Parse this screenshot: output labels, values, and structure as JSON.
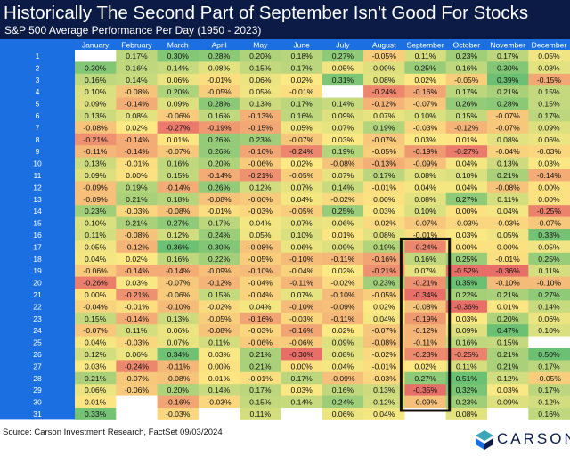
{
  "header": {
    "title": "Historically The Second Part of September Isn't Good For Stocks",
    "subtitle": "S&P 500 Average Performance Per Day (1950 - 2023)"
  },
  "chart_data": {
    "type": "table",
    "title": "Historically The Second Part of September Isn't Good For Stocks",
    "subtitle": "S&P 500 Average Performance Per Day (1950 - 2023)",
    "columns": [
      "January",
      "February",
      "March",
      "April",
      "May",
      "June",
      "July",
      "August",
      "September",
      "October",
      "November",
      "December"
    ],
    "rows": [
      "1",
      "2",
      "3",
      "4",
      "5",
      "6",
      "7",
      "8",
      "9",
      "10",
      "11",
      "12",
      "13",
      "14",
      "15",
      "16",
      "17",
      "18",
      "19",
      "20",
      "21",
      "22",
      "23",
      "24",
      "25",
      "26",
      "27",
      "28",
      "29",
      "30",
      "31"
    ],
    "values": [
      [
        "",
        "0.17%",
        "0.30%",
        "0.28%",
        "0.20%",
        "0.18%",
        "0.27%",
        "-0.05%",
        "0.11%",
        "0.23%",
        "0.17%",
        "0.05%"
      ],
      [
        "0.30%",
        "0.16%",
        "0.14%",
        "0.08%",
        "0.15%",
        "0.17%",
        "0.05%",
        "0.09%",
        "0.25%",
        "0.16%",
        "0.30%",
        "0.08%"
      ],
      [
        "0.16%",
        "0.14%",
        "0.06%",
        "-0.01%",
        "0.06%",
        "0.02%",
        "0.31%",
        "0.08%",
        "0.02%",
        "-0.05%",
        "0.39%",
        "-0.15%"
      ],
      [
        "0.10%",
        "-0.08%",
        "0.20%",
        "-0.05%",
        "0.05%",
        "-0.01%",
        "",
        "-0.24%",
        "-0.16%",
        "0.17%",
        "0.21%",
        "0.15%"
      ],
      [
        "0.09%",
        "-0.14%",
        "0.09%",
        "0.28%",
        "0.13%",
        "0.17%",
        "0.14%",
        "-0.12%",
        "-0.07%",
        "0.26%",
        "0.28%",
        "0.15%"
      ],
      [
        "0.13%",
        "0.08%",
        "-0.06%",
        "0.16%",
        "-0.13%",
        "0.16%",
        "0.09%",
        "0.07%",
        "0.10%",
        "0.15%",
        "-0.07%",
        "0.17%"
      ],
      [
        "-0.08%",
        "0.02%",
        "-0.27%",
        "-0.19%",
        "-0.15%",
        "0.05%",
        "0.07%",
        "0.19%",
        "-0.03%",
        "-0.12%",
        "-0.07%",
        "0.09%"
      ],
      [
        "-0.21%",
        "-0.14%",
        "0.01%",
        "0.26%",
        "0.23%",
        "-0.07%",
        "0.03%",
        "-0.07%",
        "0.03%",
        "0.01%",
        "0.08%",
        "0.06%"
      ],
      [
        "-0.11%",
        "-0.14%",
        "-0.07%",
        "0.26%",
        "-0.16%",
        "-0.24%",
        "0.19%",
        "-0.05%",
        "-0.19%",
        "-0.27%",
        "-0.04%",
        "-0.03%"
      ],
      [
        "0.13%",
        "-0.01%",
        "0.16%",
        "0.20%",
        "-0.06%",
        "0.02%",
        "-0.08%",
        "-0.13%",
        "-0.09%",
        "0.04%",
        "0.13%",
        "0.03%"
      ],
      [
        "0.09%",
        "0.00%",
        "0.15%",
        "-0.14%",
        "-0.21%",
        "-0.05%",
        "0.07%",
        "0.17%",
        "0.08%",
        "0.10%",
        "0.21%",
        "-0.14%"
      ],
      [
        "-0.09%",
        "0.19%",
        "-0.14%",
        "0.26%",
        "0.12%",
        "0.07%",
        "0.14%",
        "-0.01%",
        "0.04%",
        "0.04%",
        "-0.08%",
        "0.00%"
      ],
      [
        "-0.09%",
        "0.21%",
        "0.18%",
        "-0.08%",
        "-0.06%",
        "0.04%",
        "-0.02%",
        "0.00%",
        "0.08%",
        "0.27%",
        "0.11%",
        "0.00%"
      ],
      [
        "0.23%",
        "-0.03%",
        "-0.08%",
        "-0.01%",
        "-0.03%",
        "-0.05%",
        "0.25%",
        "0.03%",
        "0.10%",
        "0.00%",
        "0.04%",
        "-0.25%"
      ],
      [
        "0.10%",
        "0.21%",
        "0.27%",
        "0.17%",
        "0.04%",
        "0.07%",
        "0.06%",
        "-0.02%",
        "-0.07%",
        "-0.03%",
        "-0.03%",
        "-0.07%"
      ],
      [
        "0.11%",
        "-0.08%",
        "0.12%",
        "0.24%",
        "0.05%",
        "0.10%",
        "0.01%",
        "0.08%",
        "-0.01%",
        "0.03%",
        "0.05%",
        "0.33%"
      ],
      [
        "0.05%",
        "-0.12%",
        "0.36%",
        "0.30%",
        "-0.08%",
        "0.06%",
        "0.09%",
        "0.19%",
        "-0.24%",
        "0.00%",
        "0.00%",
        "0.05%"
      ],
      [
        "0.04%",
        "0.02%",
        "0.16%",
        "0.22%",
        "-0.05%",
        "-0.10%",
        "-0.11%",
        "-0.16%",
        "0.16%",
        "0.25%",
        "-0.01%",
        "0.25%"
      ],
      [
        "-0.06%",
        "-0.14%",
        "-0.14%",
        "-0.09%",
        "-0.10%",
        "-0.04%",
        "0.02%",
        "-0.21%",
        "0.07%",
        "-0.52%",
        "-0.36%",
        "0.11%"
      ],
      [
        "-0.26%",
        "0.03%",
        "-0.07%",
        "-0.12%",
        "-0.04%",
        "-0.11%",
        "-0.02%",
        "0.23%",
        "-0.21%",
        "0.35%",
        "-0.10%",
        "-0.10%"
      ],
      [
        "0.00%",
        "-0.21%",
        "-0.06%",
        "0.15%",
        "-0.04%",
        "0.07%",
        "-0.10%",
        "-0.05%",
        "-0.34%",
        "0.22%",
        "0.21%",
        "0.27%"
      ],
      [
        "-0.04%",
        "-0.01%",
        "-0.10%",
        "-0.02%",
        "0.04%",
        "-0.10%",
        "-0.09%",
        "0.02%",
        "-0.08%",
        "-0.36%",
        "0.01%",
        "0.14%"
      ],
      [
        "0.15%",
        "-0.14%",
        "0.13%",
        "-0.05%",
        "-0.16%",
        "-0.03%",
        "-0.11%",
        "0.04%",
        "-0.19%",
        "0.03%",
        "0.20%",
        "0.06%"
      ],
      [
        "-0.07%",
        "0.11%",
        "0.06%",
        "-0.08%",
        "-0.03%",
        "-0.16%",
        "0.02%",
        "-0.07%",
        "-0.12%",
        "0.09%",
        "0.47%",
        "0.10%"
      ],
      [
        "0.04%",
        "-0.03%",
        "0.07%",
        "0.11%",
        "-0.06%",
        "-0.06%",
        "0.09%",
        "-0.08%",
        "-0.11%",
        "0.16%",
        "0.15%",
        ""
      ],
      [
        "0.12%",
        "0.06%",
        "0.34%",
        "0.03%",
        "0.21%",
        "-0.30%",
        "0.08%",
        "-0.02%",
        "-0.23%",
        "-0.25%",
        "0.21%",
        "0.50%"
      ],
      [
        "0.03%",
        "-0.24%",
        "-0.11%",
        "0.00%",
        "0.21%",
        "0.00%",
        "0.04%",
        "-0.01%",
        "0.02%",
        "0.11%",
        "0.21%",
        "0.17%"
      ],
      [
        "0.21%",
        "-0.07%",
        "-0.08%",
        "0.01%",
        "-0.01%",
        "0.17%",
        "-0.09%",
        "-0.03%",
        "0.27%",
        "0.51%",
        "0.12%",
        "-0.05%"
      ],
      [
        "0.06%",
        "-0.06%",
        "0.20%",
        "0.14%",
        "0.17%",
        "0.03%",
        "0.16%",
        "0.13%",
        "-0.35%",
        "0.32%",
        "0.03%",
        "0.17%"
      ],
      [
        "0.01%",
        "",
        "-0.16%",
        "-0.03%",
        "0.15%",
        "0.14%",
        "0.24%",
        "0.12%",
        "-0.09%",
        "0.23%",
        "0.09%",
        "0.12%"
      ],
      [
        "0.33%",
        "",
        "-0.03%",
        "",
        "0.11%",
        "",
        "0.06%",
        "0.04%",
        "",
        "0.08%",
        "",
        "0.16%"
      ]
    ],
    "highlight": {
      "column": "September",
      "from_row": "17",
      "to_row": "30"
    }
  },
  "colors": {
    "header_bg": "#0b1b45",
    "day_column": "#1c6fe0",
    "column_header": "#1c6fe0",
    "highlight_border": "#111111",
    "logo_teal": "#3aa6b9"
  },
  "footer": {
    "source": "Source: Carson Investment Research, FactSet 09/03/2024",
    "logo_text": "CARSON"
  }
}
